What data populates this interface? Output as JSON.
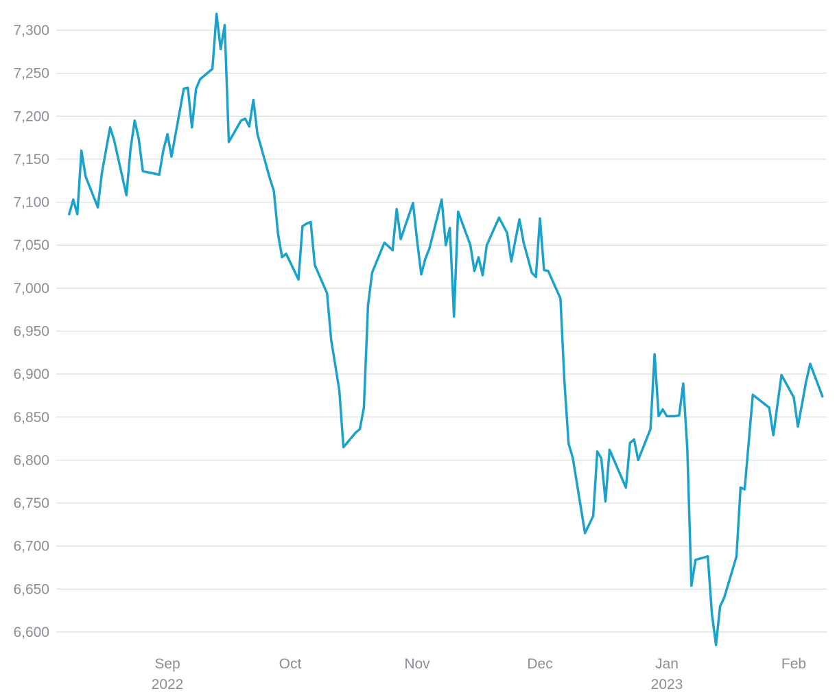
{
  "chart_data": {
    "type": "line",
    "title": "",
    "xlabel": "",
    "ylabel": "",
    "ylim": [
      6585,
      7320
    ],
    "y_ticks": [
      6600,
      6650,
      6700,
      6750,
      6800,
      6850,
      6900,
      6950,
      7000,
      7050,
      7100,
      7150,
      7200,
      7250,
      7300
    ],
    "y_tick_labels": [
      "6,600",
      "6,650",
      "6,700",
      "6,750",
      "6,800",
      "6,850",
      "6,900",
      "6,950",
      "7,000",
      "7,050",
      "7,100",
      "7,150",
      "7,200",
      "7,250",
      "7,300"
    ],
    "x_ticks": [
      {
        "date": "2022-09-01",
        "label": "Sep",
        "sublabel": "2022"
      },
      {
        "date": "2022-10-01",
        "label": "Oct",
        "sublabel": ""
      },
      {
        "date": "2022-11-01",
        "label": "Nov",
        "sublabel": ""
      },
      {
        "date": "2022-12-01",
        "label": "Dec",
        "sublabel": ""
      },
      {
        "date": "2023-01-01",
        "label": "Jan",
        "sublabel": "2023"
      },
      {
        "date": "2023-02-01",
        "label": "Feb",
        "sublabel": ""
      }
    ],
    "x_range": [
      "2022-08-06",
      "2023-02-09"
    ],
    "grid": true,
    "legend": "none",
    "series": [
      {
        "color": "#1aa1cc",
        "points": [
          [
            "2022-08-08",
            7086
          ],
          [
            "2022-08-09",
            7103
          ],
          [
            "2022-08-10",
            7086
          ],
          [
            "2022-08-11",
            7160
          ],
          [
            "2022-08-12",
            7130
          ],
          [
            "2022-08-15",
            7094
          ],
          [
            "2022-08-16",
            7134
          ],
          [
            "2022-08-18",
            7187
          ],
          [
            "2022-08-19",
            7172
          ],
          [
            "2022-08-22",
            7108
          ],
          [
            "2022-08-23",
            7162
          ],
          [
            "2022-08-24",
            7195
          ],
          [
            "2022-08-25",
            7174
          ],
          [
            "2022-08-26",
            7136
          ],
          [
            "2022-08-30",
            7132
          ],
          [
            "2022-08-31",
            7160
          ],
          [
            "2022-09-01",
            7179
          ],
          [
            "2022-09-02",
            7153
          ],
          [
            "2022-09-05",
            7232
          ],
          [
            "2022-09-06",
            7233
          ],
          [
            "2022-09-07",
            7187
          ],
          [
            "2022-09-08",
            7232
          ],
          [
            "2022-09-09",
            7243
          ],
          [
            "2022-09-12",
            7255
          ],
          [
            "2022-09-13",
            7319
          ],
          [
            "2022-09-14",
            7278
          ],
          [
            "2022-09-15",
            7306
          ],
          [
            "2022-09-16",
            7170
          ],
          [
            "2022-09-19",
            7195
          ],
          [
            "2022-09-20",
            7197
          ],
          [
            "2022-09-21",
            7188
          ],
          [
            "2022-09-22",
            7219
          ],
          [
            "2022-09-23",
            7179
          ],
          [
            "2022-09-26",
            7128
          ],
          [
            "2022-09-27",
            7113
          ],
          [
            "2022-09-28",
            7064
          ],
          [
            "2022-09-29",
            7036
          ],
          [
            "2022-09-30",
            7040
          ],
          [
            "2022-10-03",
            7010
          ],
          [
            "2022-10-04",
            7072
          ],
          [
            "2022-10-05",
            7075
          ],
          [
            "2022-10-06",
            7077
          ],
          [
            "2022-10-07",
            7027
          ],
          [
            "2022-10-10",
            6994
          ],
          [
            "2022-10-11",
            6940
          ],
          [
            "2022-10-13",
            6881
          ],
          [
            "2022-10-14",
            6815
          ],
          [
            "2022-10-17",
            6832
          ],
          [
            "2022-10-18",
            6836
          ],
          [
            "2022-10-19",
            6861
          ],
          [
            "2022-10-20",
            6980
          ],
          [
            "2022-10-21",
            7018
          ],
          [
            "2022-10-24",
            7053
          ],
          [
            "2022-10-26",
            7044
          ],
          [
            "2022-10-27",
            7092
          ],
          [
            "2022-10-28",
            7057
          ],
          [
            "2022-10-31",
            7099
          ],
          [
            "2022-11-01",
            7055
          ],
          [
            "2022-11-02",
            7016
          ],
          [
            "2022-11-03",
            7034
          ],
          [
            "2022-11-04",
            7046
          ],
          [
            "2022-11-07",
            7103
          ],
          [
            "2022-11-08",
            7050
          ],
          [
            "2022-11-09",
            7070
          ],
          [
            "2022-11-10",
            6967
          ],
          [
            "2022-11-11",
            7089
          ],
          [
            "2022-11-14",
            7050
          ],
          [
            "2022-11-15",
            7020
          ],
          [
            "2022-11-16",
            7036
          ],
          [
            "2022-11-17",
            7015
          ],
          [
            "2022-11-18",
            7050
          ],
          [
            "2022-11-21",
            7082
          ],
          [
            "2022-11-23",
            7064
          ],
          [
            "2022-11-24",
            7031
          ],
          [
            "2022-11-25",
            7056
          ],
          [
            "2022-11-26",
            7080
          ],
          [
            "2022-11-27",
            7053
          ],
          [
            "2022-11-28",
            7036
          ],
          [
            "2022-11-29",
            7018
          ],
          [
            "2022-11-30",
            7013
          ],
          [
            "2022-12-01",
            7081
          ],
          [
            "2022-12-02",
            7021
          ],
          [
            "2022-12-03",
            7020
          ],
          [
            "2022-12-06",
            6988
          ],
          [
            "2022-12-07",
            6890
          ],
          [
            "2022-12-08",
            6819
          ],
          [
            "2022-12-09",
            6803
          ],
          [
            "2022-12-12",
            6715
          ],
          [
            "2022-12-14",
            6735
          ],
          [
            "2022-12-15",
            6810
          ],
          [
            "2022-12-16",
            6802
          ],
          [
            "2022-12-17",
            6752
          ],
          [
            "2022-12-18",
            6812
          ],
          [
            "2022-12-22",
            6768
          ],
          [
            "2022-12-23",
            6820
          ],
          [
            "2022-12-24",
            6824
          ],
          [
            "2022-12-25",
            6800
          ],
          [
            "2022-12-28",
            6836
          ],
          [
            "2022-12-29",
            6923
          ],
          [
            "2022-12-30",
            6851
          ],
          [
            "2022-12-31",
            6859
          ],
          [
            "2023-01-01",
            6851
          ],
          [
            "2023-01-03",
            6851
          ],
          [
            "2023-01-04",
            6852
          ],
          [
            "2023-01-05",
            6889
          ],
          [
            "2023-01-06",
            6813
          ],
          [
            "2023-01-07",
            6654
          ],
          [
            "2023-01-08",
            6684
          ],
          [
            "2023-01-11",
            6688
          ],
          [
            "2023-01-12",
            6621
          ],
          [
            "2023-01-13",
            6585
          ],
          [
            "2023-01-14",
            6630
          ],
          [
            "2023-01-15",
            6640
          ],
          [
            "2023-01-18",
            6688
          ],
          [
            "2023-01-19",
            6768
          ],
          [
            "2023-01-20",
            6766
          ],
          [
            "2023-01-22",
            6876
          ],
          [
            "2023-01-26",
            6861
          ],
          [
            "2023-01-27",
            6829
          ],
          [
            "2023-01-29",
            6899
          ],
          [
            "2023-02-01",
            6873
          ],
          [
            "2023-02-02",
            6839
          ],
          [
            "2023-02-04",
            6891
          ],
          [
            "2023-02-05",
            6912
          ],
          [
            "2023-02-08",
            6874
          ]
        ]
      }
    ]
  }
}
